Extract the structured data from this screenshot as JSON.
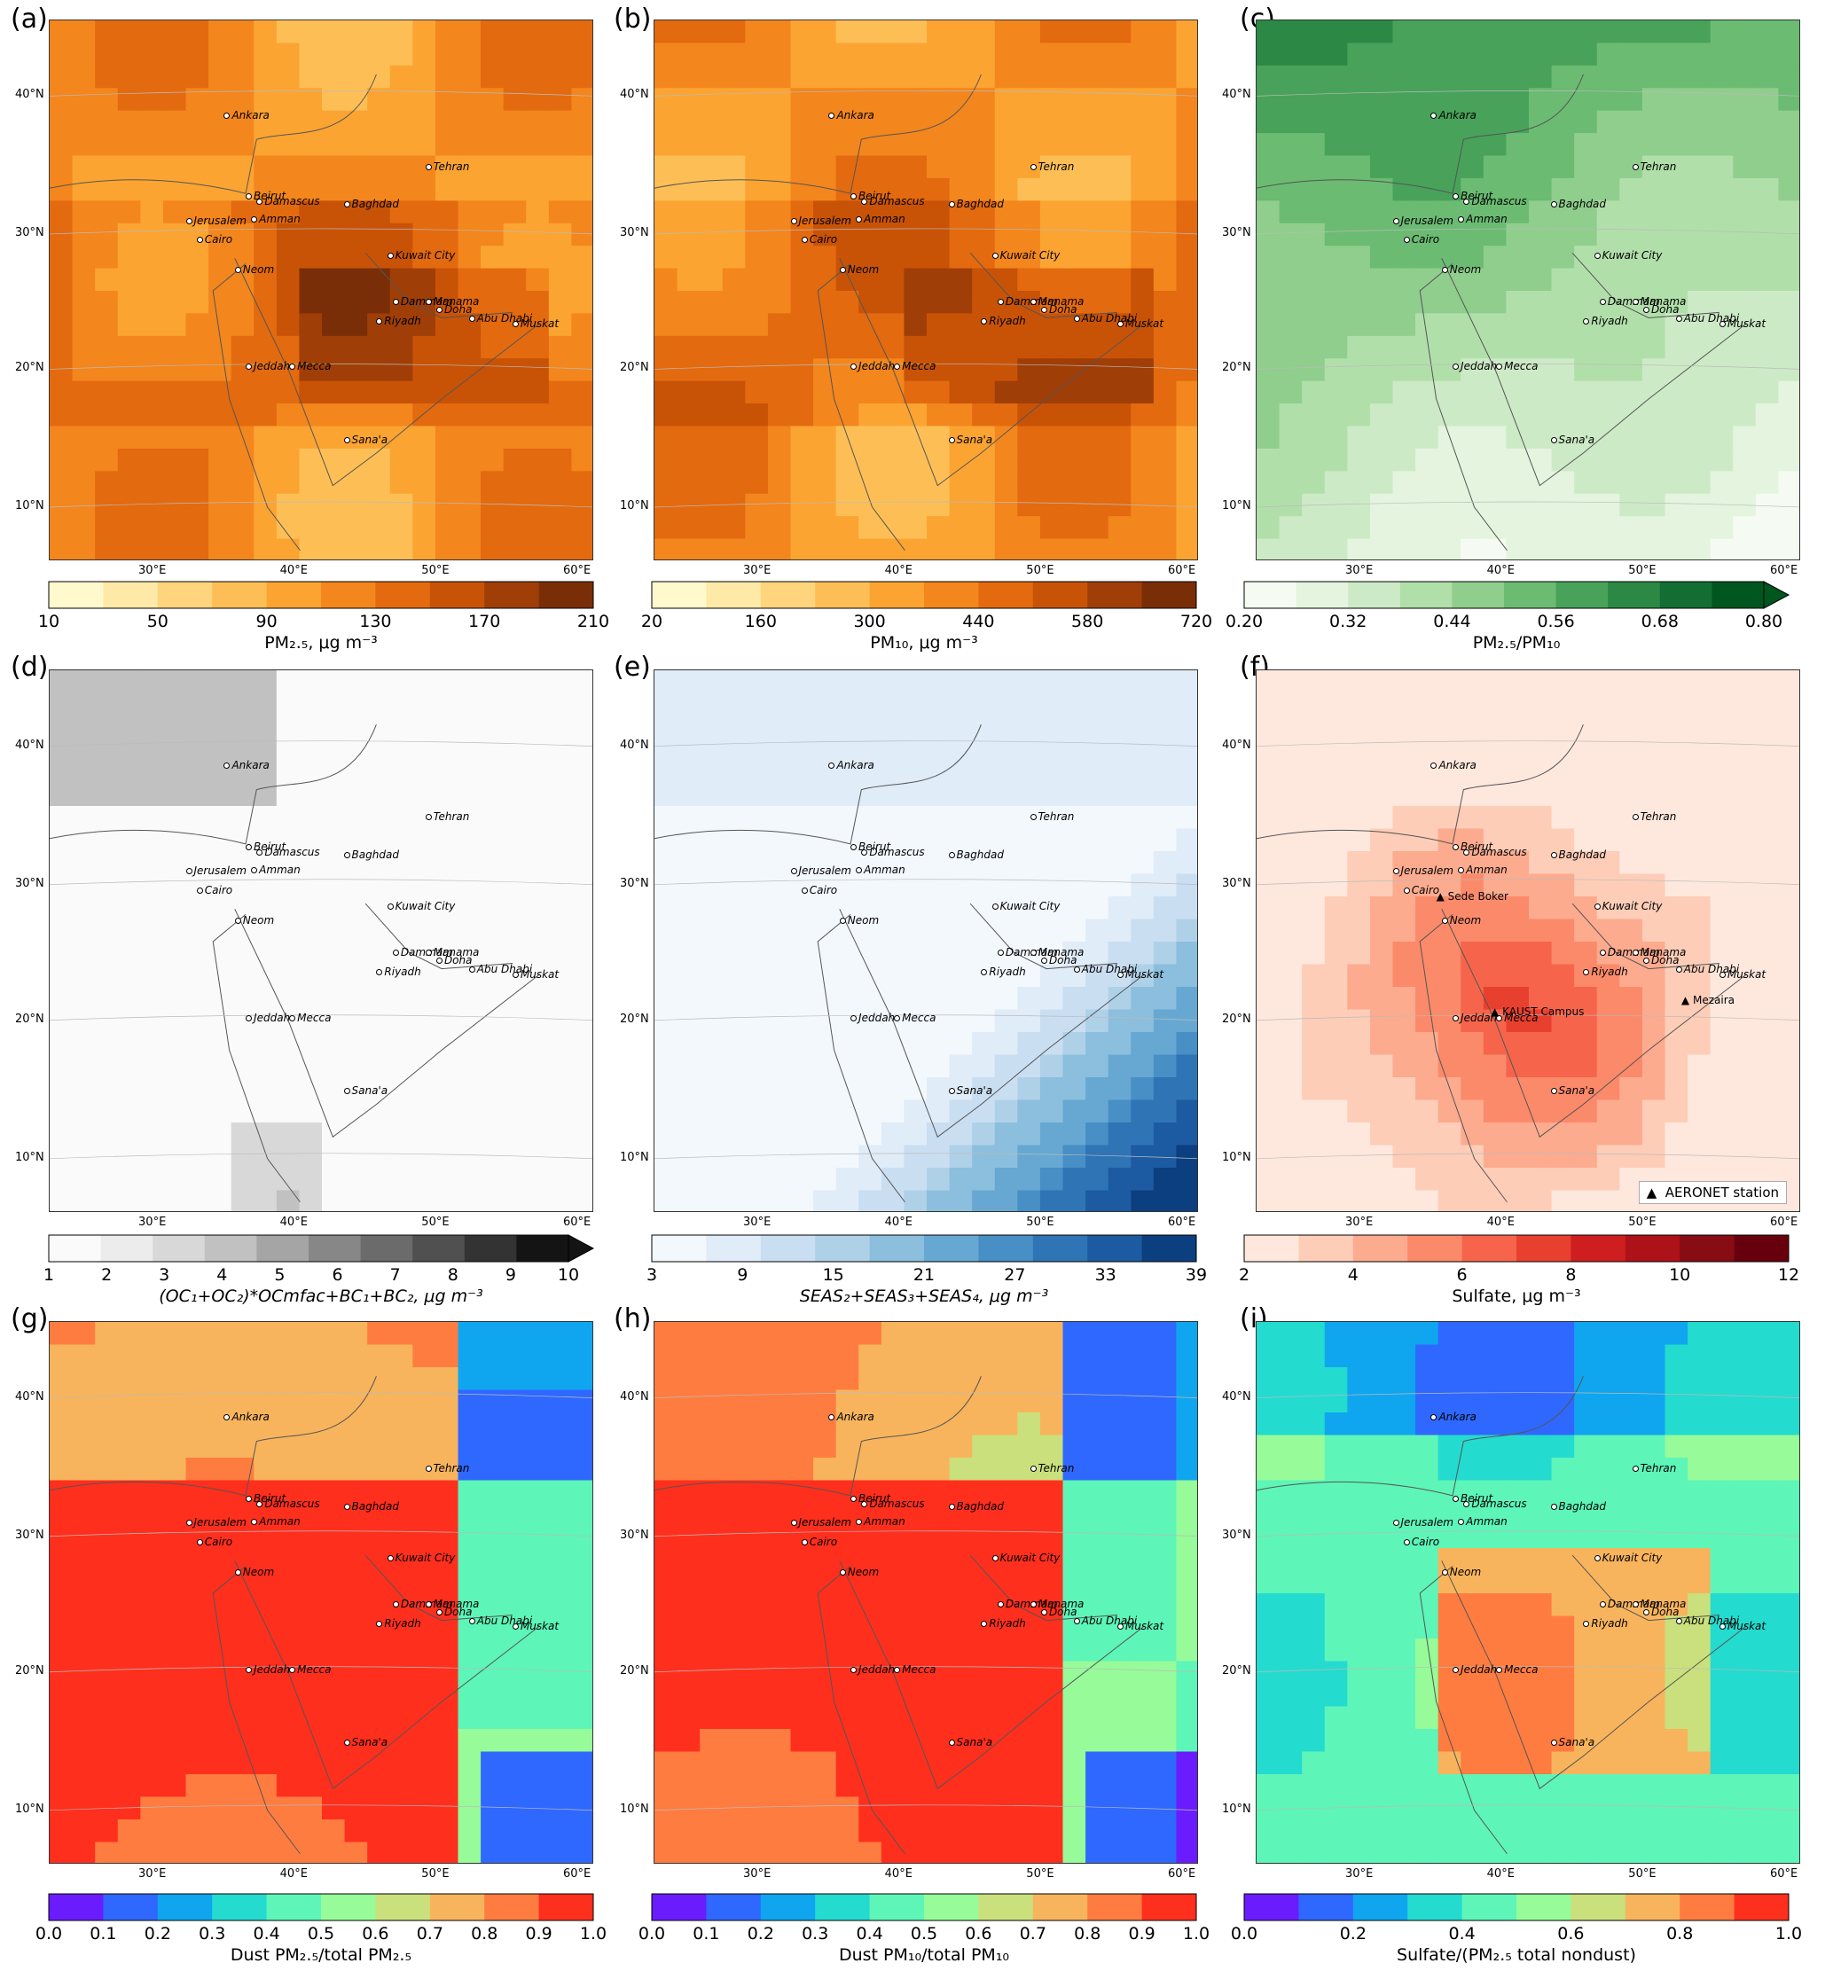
{
  "lat_labels": [
    "40°N",
    "30°N",
    "20°N",
    "10°N"
  ],
  "lon_labels": [
    "30°E",
    "40°E",
    "50°E",
    "60°E"
  ],
  "cities": [
    "Ankara",
    "Tehran",
    "Beirut",
    "Damascus",
    "Baghdad",
    "Jerusalem",
    "Amman",
    "Cairo",
    "Kuwait City",
    "Neom",
    "Dammam",
    "Manama",
    "Doha",
    "Riyadh",
    "Abu Dhabi",
    "Muskat",
    "Jeddah",
    "Mecca",
    "Sana'a"
  ],
  "stations": [
    "Sede Boker",
    "KAUST Campus",
    "Mezaira"
  ],
  "legend_label": "AERONET station",
  "panels": [
    {
      "letter": "(a)",
      "scheme": "YlOrBr",
      "ticks": [
        "10",
        "50",
        "90",
        "130",
        "170",
        "210"
      ],
      "label": "PM₂.₅, μg m⁻³",
      "extend": false,
      "italic": false
    },
    {
      "letter": "(b)",
      "scheme": "YlOrBr",
      "ticks": [
        "20",
        "160",
        "300",
        "440",
        "580",
        "720"
      ],
      "label": "PM₁₀, μg m⁻³",
      "extend": false,
      "italic": false
    },
    {
      "letter": "(c)",
      "scheme": "Greens",
      "ticks": [
        "0.20",
        "0.32",
        "0.44",
        "0.56",
        "0.68",
        "0.80"
      ],
      "label": "PM₂.₅/PM₁₀",
      "extend": true,
      "italic": false
    },
    {
      "letter": "(d)",
      "scheme": "Greys",
      "ticks": [
        "1",
        "2",
        "3",
        "4",
        "5",
        "6",
        "7",
        "8",
        "9",
        "10"
      ],
      "label": "(OC₁+OC₂)*OCmfac+BC₁+BC₂, μg m⁻³",
      "extend": true,
      "italic": true
    },
    {
      "letter": "(e)",
      "scheme": "Blues",
      "ticks": [
        "3",
        "9",
        "15",
        "21",
        "27",
        "33",
        "39"
      ],
      "label": "SEAS₂+SEAS₃+SEAS₄, μg m⁻³",
      "extend": false,
      "italic": true
    },
    {
      "letter": "(f)",
      "scheme": "Reds",
      "ticks": [
        "2",
        "4",
        "6",
        "8",
        "10",
        "12"
      ],
      "label": "Sulfate, μg m⁻³",
      "extend": false,
      "italic": false
    },
    {
      "letter": "(g)",
      "scheme": "Rainbow",
      "ticks": [
        "0.0",
        "0.1",
        "0.2",
        "0.3",
        "0.4",
        "0.5",
        "0.6",
        "0.7",
        "0.8",
        "0.9",
        "1.0"
      ],
      "label": "Dust PM₂.₅/total PM₂.₅",
      "extend": false,
      "italic": false
    },
    {
      "letter": "(h)",
      "scheme": "Rainbow",
      "ticks": [
        "0.0",
        "0.1",
        "0.2",
        "0.3",
        "0.4",
        "0.5",
        "0.6",
        "0.7",
        "0.8",
        "0.9",
        "1.0"
      ],
      "label": "Dust PM₁₀/total PM₁₀",
      "extend": false,
      "italic": false
    },
    {
      "letter": "(i)",
      "scheme": "Rainbow",
      "ticks": [
        "0.0",
        "0.2",
        "0.4",
        "0.6",
        "0.8",
        "1.0"
      ],
      "label": "Sulfate/(PM₂.₅ total nondust)",
      "extend": false,
      "italic": false
    }
  ],
  "colors": {
    "YlOrBr": [
      "#fff9cd",
      "#fee9a6",
      "#fed57c",
      "#fdbf55",
      "#fba432",
      "#f3861d",
      "#e36a0f",
      "#c85307",
      "#a03e07",
      "#7a2e08"
    ],
    "Greens": [
      "#f5fbf2",
      "#e4f4de",
      "#cdeac6",
      "#b1dfaa",
      "#90ce8d",
      "#6bbb72",
      "#48a25a",
      "#2b8845",
      "#136e33",
      "#00561f"
    ],
    "Greys": [
      "#fafafa",
      "#ececec",
      "#d8d8d8",
      "#c1c1c1",
      "#a5a5a5",
      "#878787",
      "#6b6b6b",
      "#505050",
      "#333333",
      "#141414"
    ],
    "Blues": [
      "#f3f8fd",
      "#e0ecf8",
      "#cadef2",
      "#afd1e8",
      "#8bbfdd",
      "#66a8d2",
      "#478fc5",
      "#2f75b6",
      "#1c5ba2",
      "#0c3f80"
    ],
    "Reds": [
      "#fee8dd",
      "#fdcdb8",
      "#fcab8f",
      "#fb8a6a",
      "#f6654b",
      "#e8402f",
      "#ce1e20",
      "#ad1218",
      "#870c13",
      "#67000d"
    ],
    "Rainbow": [
      "#6a1cff",
      "#2f68ff",
      "#0fa6ef",
      "#24dbcf",
      "#5df5b8",
      "#96fb98",
      "#c9e07c",
      "#f8b45c",
      "#ff7c40",
      "#ff2f1e"
    ]
  }
}
